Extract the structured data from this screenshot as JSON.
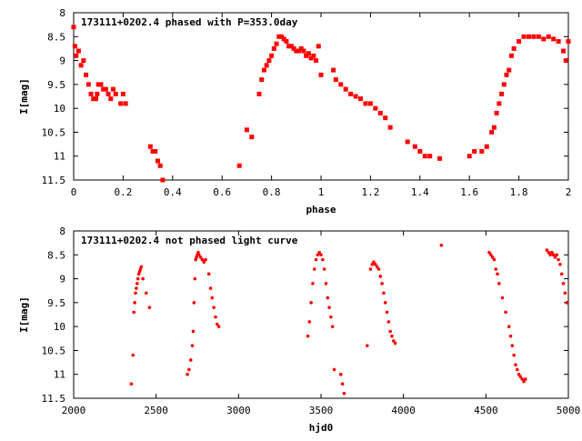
{
  "colors": {
    "points": "#ff0000",
    "axes": "#000000",
    "background": "#ffffff"
  },
  "chart_data": [
    {
      "type": "scatter",
      "title": "173111+0202.4 phased with P=353.0day",
      "xlabel": "phase",
      "ylabel": "I[mag]",
      "xlim": [
        0,
        2
      ],
      "ylim": [
        8,
        11.5
      ],
      "y_inverted": true,
      "marker": "square",
      "xticks": [
        0,
        0.2,
        0.4,
        0.6,
        0.8,
        1,
        1.2,
        1.4,
        1.6,
        1.8,
        2
      ],
      "xtick_labels": [
        "0",
        "0.2",
        "0.4",
        "0.6",
        "0.8",
        "1",
        "1.2",
        "1.4",
        "1.6",
        "1.8",
        "2"
      ],
      "yticks": [
        8,
        8.5,
        9,
        9.5,
        10,
        10.5,
        11,
        11.5
      ],
      "ytick_labels": [
        "8",
        "8.5",
        "9",
        "9.5",
        "10",
        "10.5",
        "11",
        "11.5"
      ],
      "series": [
        {
          "x": [
            0.0,
            0.005,
            0.01,
            0.02,
            0.03,
            0.04,
            0.05,
            0.06,
            0.07,
            0.08,
            0.09,
            0.095,
            0.1,
            0.11,
            0.12,
            0.13,
            0.14,
            0.15,
            0.16,
            0.17,
            0.19,
            0.2,
            0.21,
            0.31,
            0.32,
            0.33,
            0.34,
            0.35,
            0.36,
            0.67,
            0.7,
            0.72,
            0.75,
            0.76,
            0.77,
            0.78,
            0.79,
            0.8,
            0.81,
            0.82,
            0.83,
            0.84,
            0.85,
            0.86,
            0.87,
            0.88,
            0.89,
            0.9,
            0.91,
            0.92,
            0.93,
            0.94,
            0.95,
            0.96,
            0.97,
            0.98,
            0.99,
            1.0,
            1.05,
            1.06,
            1.08,
            1.1,
            1.12,
            1.14,
            1.16,
            1.18,
            1.2,
            1.22,
            1.24,
            1.26,
            1.28,
            1.35,
            1.38,
            1.4,
            1.42,
            1.44,
            1.48,
            1.6,
            1.62,
            1.65,
            1.67,
            1.69,
            1.7,
            1.71,
            1.72,
            1.73,
            1.74,
            1.75,
            1.76,
            1.77,
            1.78,
            1.8,
            1.82,
            1.84,
            1.86,
            1.88,
            1.9,
            1.92,
            1.94,
            1.96,
            1.98,
            1.99,
            2.0
          ],
          "y": [
            8.3,
            8.7,
            8.9,
            8.8,
            9.1,
            9.0,
            9.3,
            9.5,
            9.7,
            9.8,
            9.8,
            9.7,
            9.5,
            9.5,
            9.6,
            9.6,
            9.7,
            9.8,
            9.6,
            9.7,
            9.9,
            9.7,
            9.9,
            10.8,
            10.9,
            10.9,
            11.1,
            11.2,
            11.5,
            11.2,
            10.45,
            10.6,
            9.7,
            9.4,
            9.2,
            9.1,
            9.0,
            8.9,
            8.75,
            8.65,
            8.5,
            8.5,
            8.55,
            8.6,
            8.7,
            8.7,
            8.75,
            8.8,
            8.8,
            8.75,
            8.8,
            8.9,
            8.85,
            8.95,
            8.9,
            9.0,
            8.7,
            9.3,
            9.2,
            9.4,
            9.5,
            9.6,
            9.7,
            9.75,
            9.8,
            9.9,
            9.9,
            10.0,
            10.1,
            10.2,
            10.4,
            10.7,
            10.8,
            10.9,
            11.0,
            11.0,
            11.05,
            11.0,
            10.9,
            10.9,
            10.8,
            10.5,
            10.4,
            10.1,
            9.9,
            9.7,
            9.5,
            9.3,
            9.2,
            8.9,
            8.75,
            8.6,
            8.5,
            8.5,
            8.5,
            8.5,
            8.55,
            8.5,
            8.55,
            8.6,
            8.8,
            9.0,
            8.6
          ]
        }
      ]
    },
    {
      "type": "scatter",
      "title": "173111+0202.4 not phased light curve",
      "xlabel": "hjd0",
      "ylabel": "I[mag]",
      "xlim": [
        2000,
        5000
      ],
      "ylim": [
        8,
        11.5
      ],
      "y_inverted": true,
      "marker": "dot",
      "xticks": [
        2000,
        2500,
        3000,
        3500,
        4000,
        4500,
        5000
      ],
      "xtick_labels": [
        "2000",
        "2500",
        "3000",
        "3500",
        "4000",
        "4500",
        "5000"
      ],
      "yticks": [
        8,
        8.5,
        9,
        9.5,
        10,
        10.5,
        11,
        11.5
      ],
      "ytick_labels": [
        "8",
        "8.5",
        "9",
        "9.5",
        "10",
        "10.5",
        "11",
        "11.5"
      ],
      "series": [
        {
          "x": [
            2350,
            2360,
            2365,
            2370,
            2375,
            2380,
            2385,
            2390,
            2395,
            2400,
            2405,
            2410,
            2420,
            2440,
            2460,
            2690,
            2700,
            2710,
            2720,
            2725,
            2730,
            2735,
            2740,
            2745,
            2750,
            2755,
            2760,
            2770,
            2780,
            2790,
            2800,
            2820,
            2830,
            2840,
            2850,
            2860,
            2870,
            2880,
            3420,
            3430,
            3440,
            3450,
            3460,
            3470,
            3480,
            3490,
            3500,
            3510,
            3520,
            3530,
            3540,
            3550,
            3560,
            3570,
            3580,
            3620,
            3630,
            3640,
            3650,
            3780,
            3800,
            3810,
            3820,
            3830,
            3840,
            3850,
            3860,
            3870,
            3880,
            3890,
            3900,
            3910,
            3920,
            3930,
            3940,
            3950,
            4230,
            4520,
            4530,
            4540,
            4550,
            4560,
            4570,
            4580,
            4600,
            4620,
            4640,
            4650,
            4660,
            4670,
            4680,
            4690,
            4700,
            4710,
            4720,
            4730,
            4740,
            4870,
            4880,
            4890,
            4900,
            4910,
            4920,
            4930,
            4940,
            4950,
            4960,
            4970,
            4980,
            4990
          ],
          "y": [
            11.2,
            10.6,
            9.7,
            9.5,
            9.3,
            9.2,
            9.1,
            9.0,
            8.9,
            8.85,
            8.8,
            8.75,
            9.0,
            9.3,
            9.6,
            11.0,
            10.9,
            10.7,
            10.4,
            10.1,
            9.5,
            9.0,
            8.6,
            8.55,
            8.5,
            8.45,
            8.5,
            8.55,
            8.6,
            8.65,
            8.6,
            8.9,
            9.2,
            9.4,
            9.6,
            9.8,
            9.95,
            10.0,
            10.2,
            9.9,
            9.5,
            9.1,
            8.8,
            8.6,
            8.5,
            8.45,
            8.5,
            8.6,
            8.8,
            9.1,
            9.4,
            9.6,
            9.8,
            10.0,
            10.9,
            11.0,
            11.2,
            11.4,
            11.55,
            10.4,
            8.8,
            8.7,
            8.65,
            8.7,
            8.75,
            8.8,
            8.95,
            9.1,
            9.3,
            9.5,
            9.7,
            9.9,
            10.1,
            10.2,
            10.3,
            10.35,
            8.3,
            8.45,
            8.5,
            8.55,
            8.6,
            8.8,
            8.9,
            9.1,
            9.4,
            9.7,
            10.0,
            10.2,
            10.4,
            10.6,
            10.8,
            10.9,
            11.0,
            11.05,
            11.1,
            11.15,
            11.1,
            8.4,
            8.45,
            8.5,
            8.45,
            8.5,
            8.55,
            8.5,
            8.6,
            8.7,
            8.9,
            9.1,
            9.3,
            9.5
          ]
        }
      ]
    }
  ]
}
